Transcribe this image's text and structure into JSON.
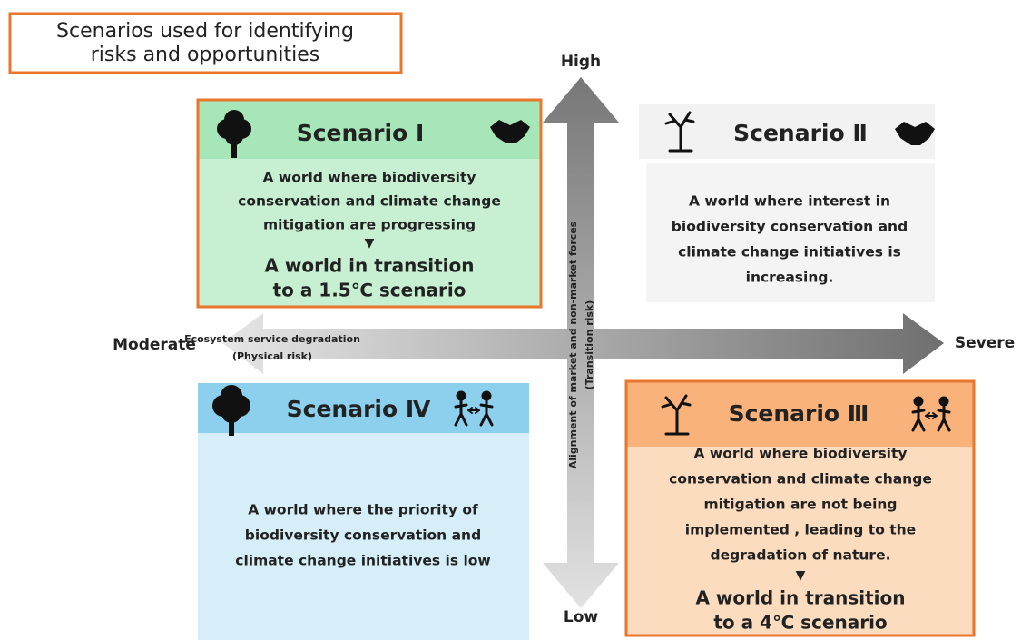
{
  "title": {
    "lines": [
      "Scenarios used for identifying",
      "risks and opportunities"
    ]
  },
  "axes": {
    "vertical": {
      "top": "High",
      "bottom": "Low",
      "label_lines": [
        "Alignment of market and non-market forces",
        "(Transition risk)"
      ]
    },
    "horizontal": {
      "left": "Moderate",
      "right": "Severe",
      "label_lines": [
        "Ecosystem service degradation",
        "(Physical risk)"
      ]
    }
  },
  "scenarios": [
    {
      "name": "Scenario Ⅰ",
      "description_lines": [
        "A world where biodiversity",
        "conservation and climate change",
        "mitigation are progressing"
      ],
      "marker": "▼",
      "outcome_lines": [
        "A world in transition",
        "to a 1.5℃ scenario"
      ]
    },
    {
      "name": "Scenario Ⅱ",
      "description_lines": [
        "A world where interest in",
        "biodiversity conservation and",
        "climate change initiatives is",
        "increasing."
      ]
    },
    {
      "name": "Scenario Ⅲ",
      "description_lines": [
        "A world where biodiversity",
        "conservation and climate change",
        "mitigation are not being",
        "implemented , leading to the",
        "degradation of nature."
      ],
      "marker": "▼",
      "outcome_lines": [
        "A world in transition",
        "to a 4℃ scenario"
      ]
    },
    {
      "name": "Scenario Ⅳ",
      "description_lines": [
        "A world where the priority of",
        "biodiversity conservation and",
        "climate change initiatives is low"
      ]
    }
  ]
}
